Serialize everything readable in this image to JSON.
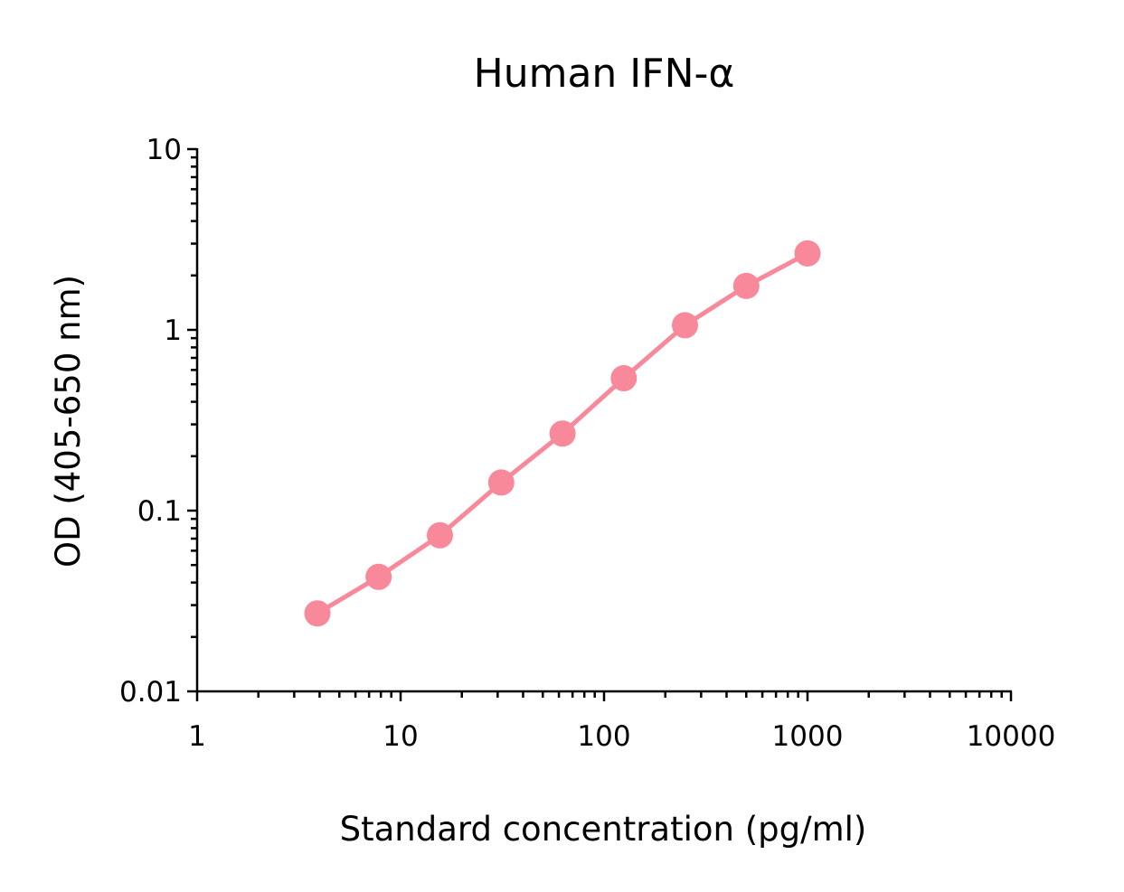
{
  "chart_data": {
    "type": "line",
    "title": "Human IFN-α",
    "xlabel": "Standard concentration (pg/ml)",
    "ylabel": "OD (405-650 nm)",
    "xscale": "log",
    "yscale": "log",
    "xlim": [
      1,
      10000
    ],
    "ylim": [
      0.01,
      10
    ],
    "x_ticks": [
      1,
      10,
      100,
      1000,
      10000
    ],
    "x_tick_labels": [
      "1",
      "10",
      "100",
      "1000",
      "10000"
    ],
    "y_ticks": [
      0.01,
      0.1,
      1,
      10
    ],
    "y_tick_labels": [
      "0.01",
      "0.1",
      "1",
      "10"
    ],
    "grid": false,
    "series": [
      {
        "color": "#f7899a",
        "marker": "circle",
        "x": [
          3.9,
          7.8,
          15.6,
          31.25,
          62.5,
          125,
          250,
          500,
          1000
        ],
        "y": [
          0.027,
          0.043,
          0.073,
          0.143,
          0.267,
          0.54,
          1.06,
          1.75,
          2.65
        ]
      }
    ]
  }
}
